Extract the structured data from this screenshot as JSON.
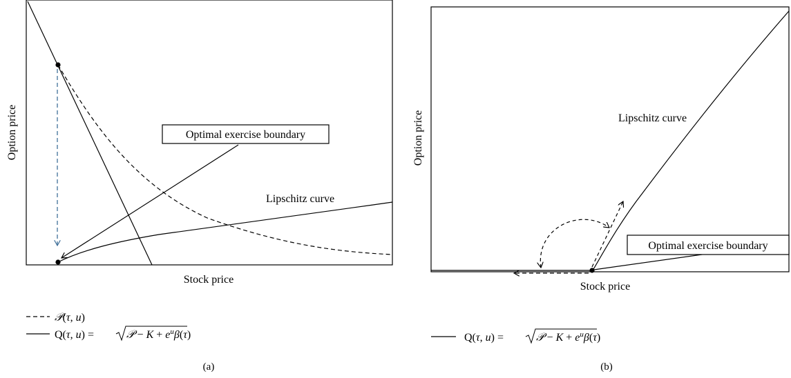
{
  "panels": [
    {
      "id": "a",
      "xlabel": "Stock price",
      "ylabel": "Option price",
      "annotations": [
        "Optimal exercise boundary",
        "Lipschitz curve"
      ],
      "legend": [
        {
          "style": "dashed",
          "label": "𝒫(τ, u)"
        },
        {
          "style": "solid",
          "label": "Q(τ, u) = √(𝒫 − K + eᵘβ(τ))"
        }
      ],
      "caption": "(a)"
    },
    {
      "id": "b",
      "xlabel": "Stock price",
      "ylabel": "Option price",
      "annotations": [
        "Lipschitz curve",
        "Optimal exercise boundary"
      ],
      "legend": [
        {
          "style": "solid",
          "label": "Q(τ, u) = √(𝒫 − K + eᵘβ(τ))"
        }
      ],
      "caption": "(b)"
    }
  ],
  "colors": {
    "line": "#000000",
    "arrow_blue": "#3f6f99"
  }
}
